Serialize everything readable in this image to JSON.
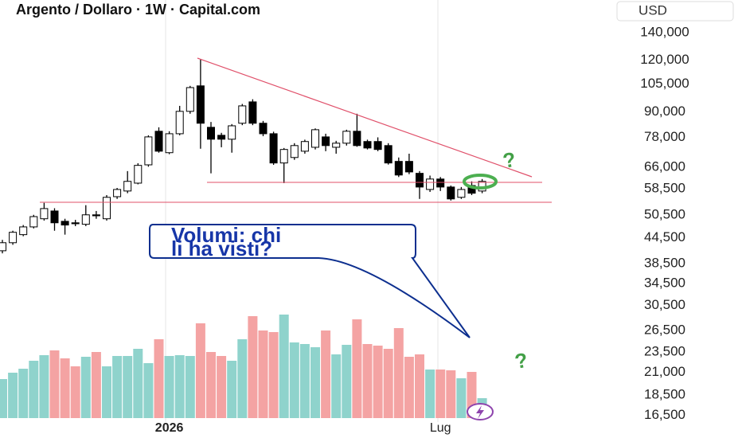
{
  "chart_data": {
    "type": "candlestick",
    "title": "Argento / Dollaro · 1W · Capital.com",
    "currency": "USD",
    "log_scale": true,
    "categories": [
      null,
      null,
      null,
      null,
      null,
      null,
      null,
      null,
      null,
      null,
      null,
      null,
      null,
      null,
      null,
      null,
      "2026",
      null,
      null,
      null,
      null,
      null,
      null,
      null,
      null,
      null,
      null,
      null,
      null,
      null,
      null,
      null,
      null,
      null,
      null,
      null,
      null,
      null,
      null,
      null,
      null,
      null,
      "Lug",
      null,
      null,
      null,
      null
    ],
    "open": [
      41400,
      43300,
      45300,
      47300,
      49500,
      51700,
      48800,
      48400,
      48000,
      50600,
      49500,
      56000,
      57800,
      60400,
      66900,
      80700,
      71600,
      79600,
      90200,
      104000,
      82500,
      78900,
      77200,
      84400,
      95100,
      84400,
      79600,
      67600,
      69700,
      72200,
      73800,
      78200,
      73800,
      75500,
      80700,
      76200,
      76200,
      74500,
      68200,
      68200,
      63800,
      58300,
      61800,
      59100,
      55800,
      59600,
      57800
    ],
    "high": [
      44000,
      46300,
      47800,
      50600,
      54100,
      52500,
      49500,
      49200,
      53400,
      51700,
      56500,
      58800,
      64600,
      67500,
      78900,
      82500,
      80700,
      93000,
      104000,
      120400,
      85000,
      80000,
      84000,
      94000,
      96500,
      85500,
      80500,
      73500,
      75500,
      77000,
      82000,
      79600,
      76500,
      81400,
      89000,
      77000,
      78000,
      75500,
      69700,
      71200,
      64600,
      63000,
      62500,
      59600,
      59100,
      61000,
      61800
    ],
    "low": [
      40800,
      42800,
      44900,
      46900,
      49000,
      46300,
      45300,
      47500,
      47500,
      49500,
      49000,
      55300,
      57100,
      60000,
      66200,
      71600,
      71000,
      78900,
      89000,
      73200,
      63800,
      73800,
      71600,
      83500,
      83500,
      78500,
      66900,
      60400,
      68800,
      71200,
      72900,
      72200,
      71200,
      74500,
      74000,
      72900,
      72200,
      67000,
      62500,
      63500,
      55300,
      57500,
      57800,
      54800,
      55300,
      56500,
      57100
    ],
    "close": [
      43300,
      45900,
      47300,
      50100,
      52400,
      48400,
      47800,
      48300,
      50600,
      50400,
      55800,
      58300,
      61000,
      66700,
      78200,
      72200,
      79600,
      90200,
      103000,
      84400,
      77200,
      77200,
      83200,
      93000,
      84400,
      79600,
      67600,
      72900,
      74500,
      76200,
      81400,
      74500,
      75500,
      80700,
      74500,
      73500,
      72900,
      67600,
      63200,
      64300,
      59100,
      61800,
      59100,
      55300,
      58300,
      57100,
      61000
    ],
    "volume": [
      49,
      57,
      62,
      72,
      79,
      85,
      75,
      65,
      77,
      83,
      65,
      78,
      78,
      87,
      69,
      99,
      78,
      79,
      78,
      119,
      83,
      78,
      72,
      99,
      128,
      110,
      108,
      130,
      95,
      93,
      89,
      110,
      80,
      92,
      124,
      93,
      91,
      87,
      113,
      77,
      80,
      61,
      61,
      60,
      50,
      58,
      25
    ],
    "up_color": "#ffffff",
    "down_color": "#000000",
    "volume_up_color": "#8fd3cc",
    "volume_down_color": "#f4a3a3",
    "ylim": [
      15900,
      168000
    ],
    "yticks": [
      {
        "value": 140000,
        "label": "140,000"
      },
      {
        "value": 120000,
        "label": "120,000"
      },
      {
        "value": 105000,
        "label": "105,000"
      },
      {
        "value": 90000,
        "label": "90,000"
      },
      {
        "value": 78000,
        "label": "78,000"
      },
      {
        "value": 66000,
        "label": "66,000"
      },
      {
        "value": 58500,
        "label": "58,500"
      },
      {
        "value": 50500,
        "label": "50,500"
      },
      {
        "value": 44500,
        "label": "44,500"
      },
      {
        "value": 38500,
        "label": "38,500"
      },
      {
        "value": 34500,
        "label": "34,500"
      },
      {
        "value": 30500,
        "label": "30,500"
      },
      {
        "value": 26500,
        "label": "26,500"
      },
      {
        "value": 23500,
        "label": "23,500"
      },
      {
        "value": 21000,
        "label": "21,000"
      },
      {
        "value": 18500,
        "label": "18,500"
      },
      {
        "value": 16500,
        "label": "16,500"
      }
    ],
    "annotations": {
      "callout": [
        "Volumi: chi",
        "li ha visti?"
      ],
      "marks": [
        "?",
        "?"
      ]
    }
  }
}
